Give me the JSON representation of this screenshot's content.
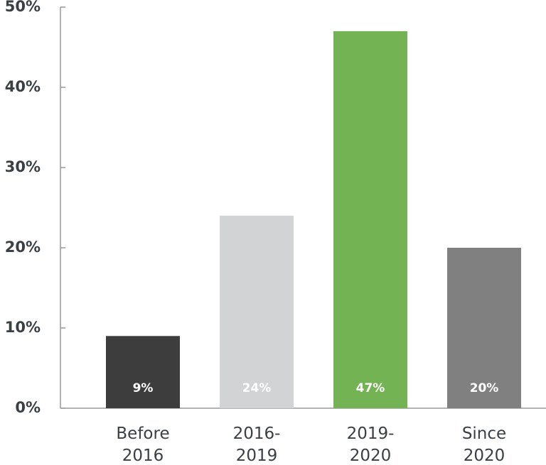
{
  "chart_data": {
    "type": "bar",
    "categories": [
      "Before 2016",
      "2016-2019",
      "2019-2020",
      "Since 2020"
    ],
    "values": [
      9,
      24,
      47,
      20
    ],
    "value_labels": [
      "9%",
      "24%",
      "47%",
      "20%"
    ],
    "colors": [
      "#3d3d3d",
      "#d1d3d5",
      "#74b354",
      "#808080"
    ],
    "ylim": [
      0,
      50
    ],
    "yticks": [
      {
        "value": 0,
        "label": "0%"
      },
      {
        "value": 10,
        "label": "10%"
      },
      {
        "value": 20,
        "label": "20%"
      },
      {
        "value": 30,
        "label": "30%"
      },
      {
        "value": 40,
        "label": "40%"
      },
      {
        "value": 50,
        "label": "50%"
      }
    ],
    "grid": false
  }
}
